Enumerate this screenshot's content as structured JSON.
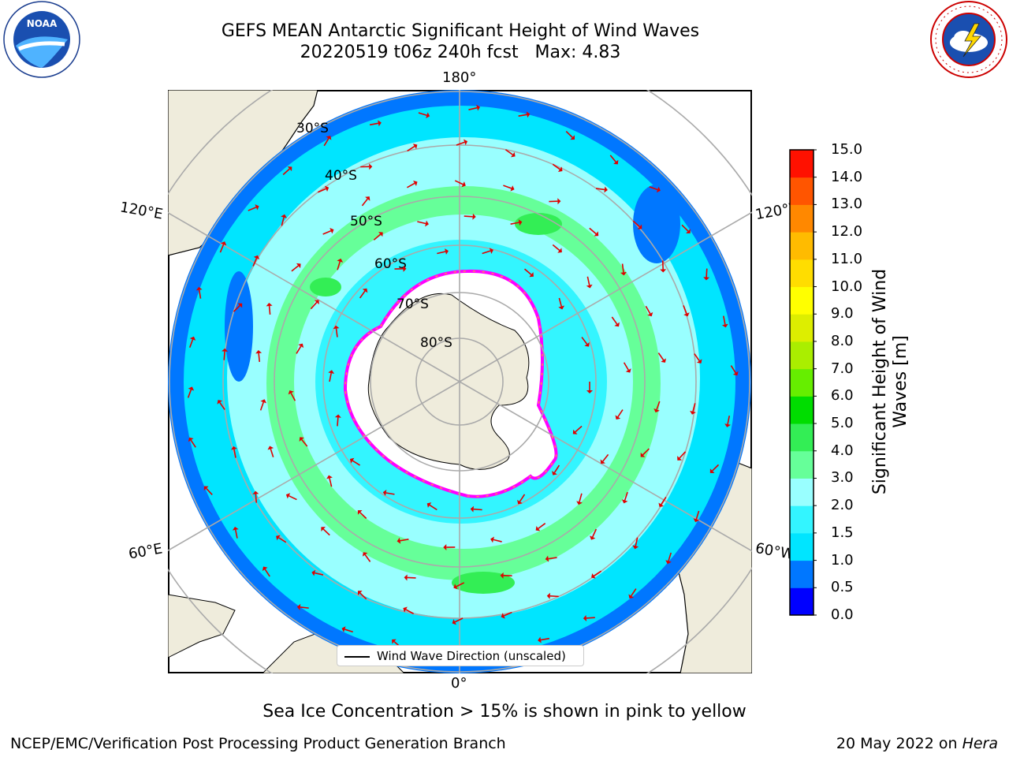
{
  "header": {
    "title_line1": "GEFS MEAN Antarctic Significant Height of Wind Waves",
    "title_line2": "20220519 t06z 240h fcst   Max: 4.83"
  },
  "logos": {
    "left": "noaa-logo",
    "right": "national-weather-service-logo"
  },
  "map": {
    "projection": "south-polar-stereographic",
    "lon_labels": {
      "top": "180°",
      "bottom": "0°",
      "upper_left": "120°E",
      "lower_left": "60°E",
      "upper_right": "120°W",
      "lower_right": "60°W"
    },
    "lat_labels": [
      "30°S",
      "40°S",
      "50°S",
      "60°S",
      "70°S",
      "80°S"
    ],
    "legend": "Wind Wave Direction (unscaled)",
    "arrow_color": "#e00000",
    "ice_edge_colors": [
      "#ff00ff",
      "#ffd000"
    ]
  },
  "colorbar": {
    "label_line1": "Significant Height of Wind",
    "label_line2": "Waves [m]",
    "ticks": [
      "0.0",
      "0.5",
      "1.0",
      "1.5",
      "2.0",
      "3.0",
      "4.0",
      "5.0",
      "6.0",
      "7.0",
      "8.0",
      "9.0",
      "10.0",
      "11.0",
      "12.0",
      "13.0",
      "14.0",
      "15.0"
    ],
    "colors": [
      "#0000ff",
      "#0077ff",
      "#00e5ff",
      "#33f5ff",
      "#99ffff",
      "#66ff99",
      "#33ee55",
      "#00dd00",
      "#66ee00",
      "#aaee00",
      "#ddee00",
      "#ffff00",
      "#ffdd00",
      "#ffbb00",
      "#ff8800",
      "#ff5500",
      "#ff1100"
    ]
  },
  "footer": {
    "note": "Sea Ice Concentration > 15% is shown in pink to yellow",
    "left_credit": "NCEP/EMC/Verification Post Processing Product Generation Branch",
    "right_credit_prefix": "20 May 2022 on ",
    "right_credit_machine": "Hera"
  }
}
